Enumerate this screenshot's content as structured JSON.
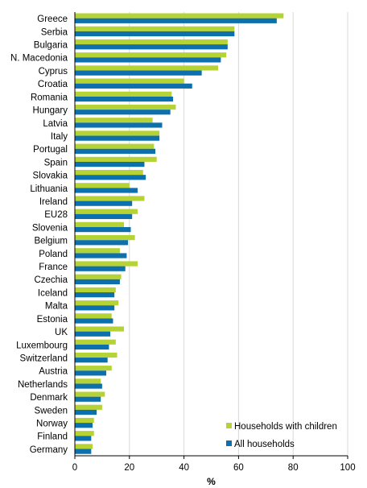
{
  "chart_data": {
    "type": "bar",
    "orientation": "horizontal",
    "categories": [
      "Greece",
      "Serbia",
      "Bulgaria",
      "N. Macedonia",
      "Cyprus",
      "Croatia",
      "Romania",
      "Hungary",
      "Latvia",
      "Italy",
      "Portugal",
      "Spain",
      "Slovakia",
      "Lithuania",
      "Ireland",
      "EU28",
      "Slovenia",
      "Belgium",
      "Poland",
      "France",
      "Czechia",
      "Iceland",
      "Malta",
      "Estonia",
      "UK",
      "Luxembourg",
      "Switzerland",
      "Austria",
      "Netherlands",
      "Denmark",
      "Sweden",
      "Norway",
      "Finland",
      "Germany"
    ],
    "series": [
      {
        "name": "Households with children",
        "color": "#b5d334",
        "values": [
          76.5,
          58.5,
          56,
          55.5,
          52.5,
          40,
          35.5,
          37,
          28.5,
          31,
          29,
          30,
          25,
          20,
          25.5,
          23,
          18,
          22,
          16.5,
          23,
          17,
          15,
          16,
          13.5,
          18,
          15,
          15.5,
          13.5,
          9.5,
          11,
          10,
          7,
          7,
          6.5
        ]
      },
      {
        "name": "All households",
        "color": "#0d6fab",
        "values": [
          74,
          58.5,
          56,
          53.5,
          46.5,
          43,
          36,
          35,
          32,
          31,
          29.5,
          25.5,
          26,
          23,
          21,
          21,
          20.5,
          19.5,
          19,
          18.5,
          16.5,
          14.5,
          14.5,
          14,
          13,
          12.5,
          12,
          11.5,
          10,
          9.5,
          8,
          6.5,
          6,
          6
        ]
      }
    ],
    "xlabel": "%",
    "xlim": [
      0,
      100
    ],
    "xticks": [
      0,
      20,
      40,
      60,
      80,
      100
    ],
    "grid": "vertical",
    "legend_position": "bottom-right"
  }
}
